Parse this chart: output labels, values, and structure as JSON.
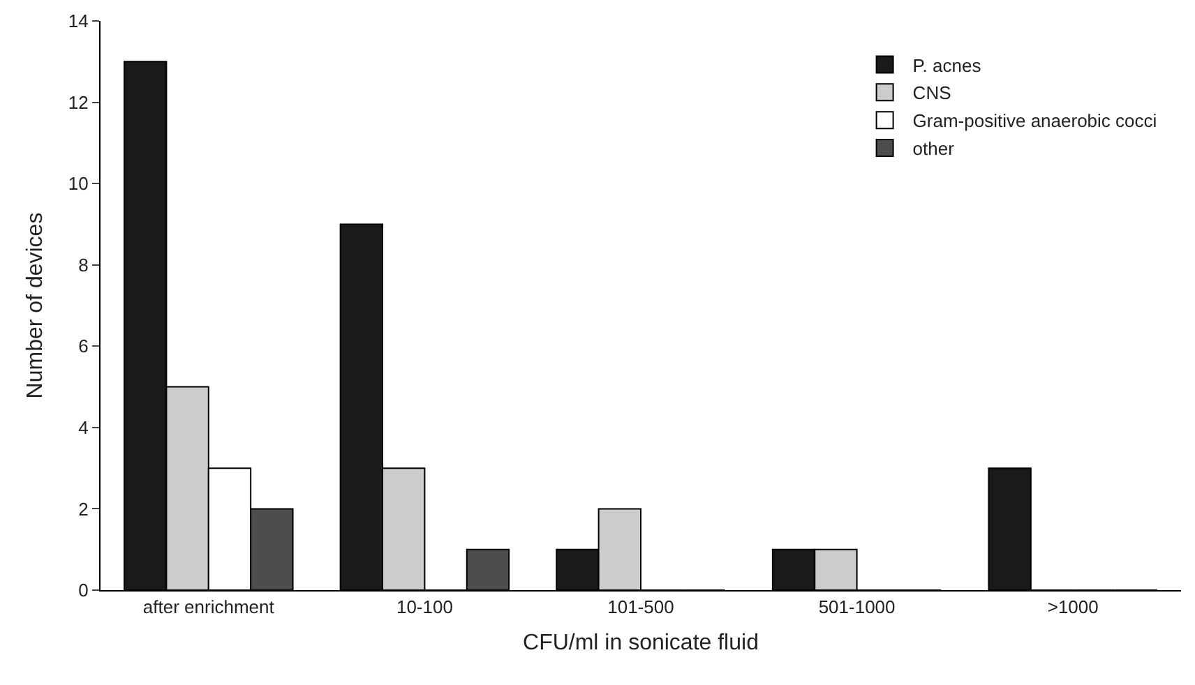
{
  "chart_data": {
    "type": "bar",
    "xlabel": "CFU/ml in sonicate fluid",
    "ylabel": "Number of devices",
    "categories": [
      "after enrichment",
      "10-100",
      "101-500",
      "501-1000",
      ">1000"
    ],
    "series": [
      {
        "name": "P. acnes",
        "color": "#1a1a1a",
        "values": [
          13,
          9,
          1,
          1,
          3
        ]
      },
      {
        "name": "CNS",
        "color": "#cccccc",
        "values": [
          5,
          3,
          2,
          1,
          0
        ]
      },
      {
        "name": "Gram-positive anaerobic cocci",
        "color": "#ffffff",
        "values": [
          3,
          0,
          0,
          0,
          0
        ]
      },
      {
        "name": "other",
        "color": "#4d4d4d",
        "values": [
          2,
          1,
          0,
          0,
          0
        ]
      }
    ],
    "ylim": [
      0,
      14
    ],
    "yticks": [
      0,
      2,
      4,
      6,
      8,
      10,
      12,
      14
    ],
    "grid": false,
    "legend": "top right"
  }
}
